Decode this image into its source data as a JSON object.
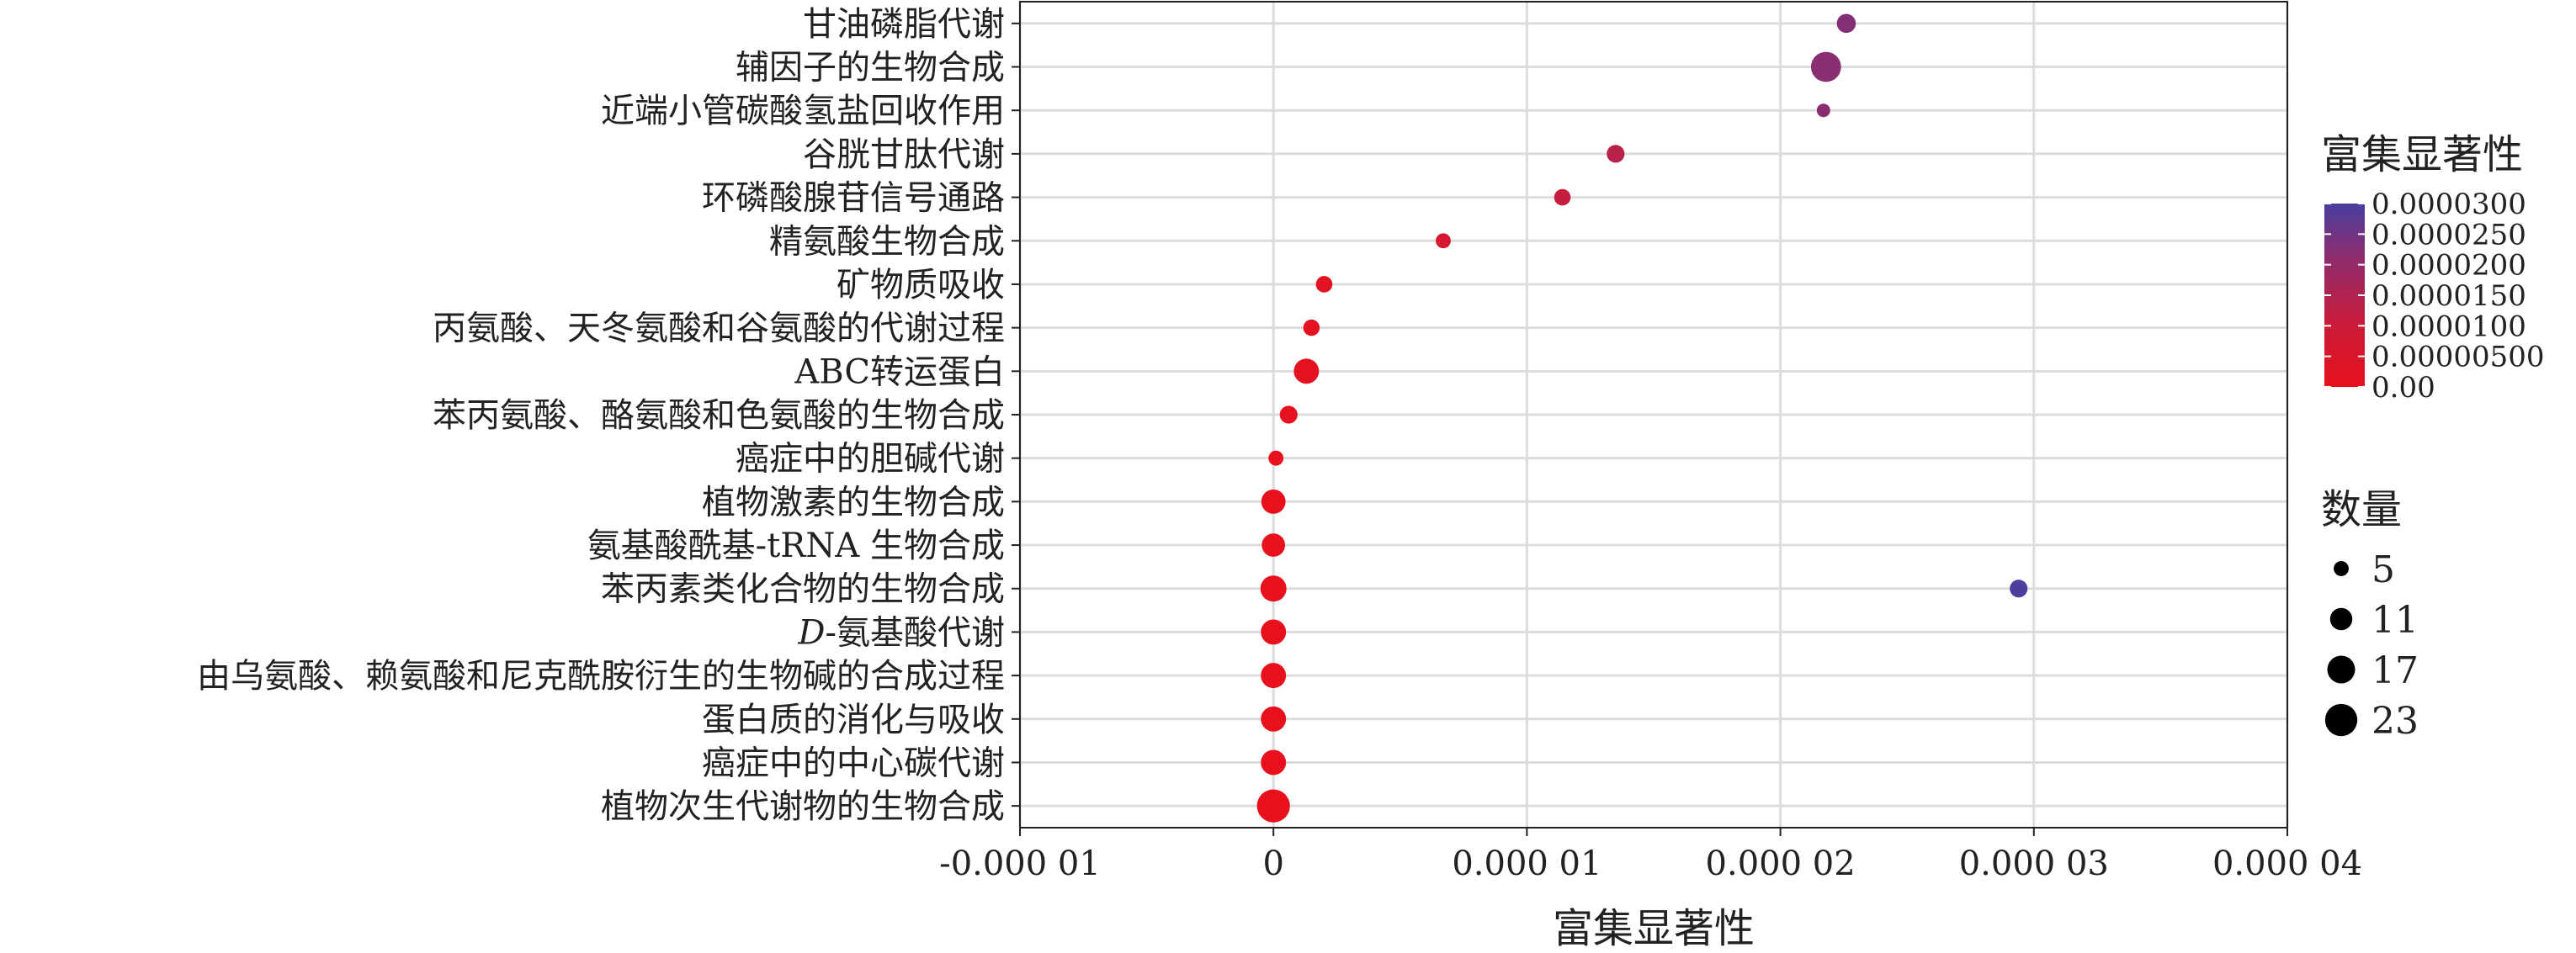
{
  "chart_data": {
    "type": "scatter",
    "xlabel": "富集显著性",
    "x_ticks": [
      "-0.000 01",
      "0",
      "0.000 01",
      "0.000 02",
      "0.000 03",
      "0.000 04"
    ],
    "x_tick_values": [
      -1e-05,
      0,
      1e-05,
      2e-05,
      3e-05,
      4e-05
    ],
    "xlim": [
      -1e-05,
      4e-05
    ],
    "grid": true,
    "categories": [
      "甘油磷脂代谢",
      "辅因子的生物合成",
      "近端小管碳酸氢盐回收作用",
      "谷胱甘肽代谢",
      "环磷酸腺苷信号通路",
      "精氨酸生物合成",
      "矿物质吸收",
      "丙氨酸、天冬氨酸和谷氨酸的代谢过程",
      "ABC转运蛋白",
      "苯丙氨酸、酪氨酸和色氨酸的生物合成",
      "癌症中的胆碱代谢",
      "植物激素的生物合成",
      "氨基酸酰基-tRNA 生物合成",
      "苯丙素类化合物的生物合成",
      "D-氨基酸代谢",
      "由乌氨酸、赖氨酸和尼克酰胺衍生的生物碱的合成过程",
      "蛋白质的消化与吸收",
      "癌症中的中心碳代谢",
      "植物次生代谢物的生物合成"
    ],
    "points": [
      {
        "category": "甘油磷脂代谢",
        "x": 2.26e-05,
        "count": 8,
        "color_value": 2.26e-05
      },
      {
        "category": "辅因子的生物合成",
        "x": 2.18e-05,
        "count": 20,
        "color_value": 2.18e-05
      },
      {
        "category": "近端小管碳酸氢盐回收作用",
        "x": 2.17e-05,
        "count": 4,
        "color_value": 2.17e-05
      },
      {
        "category": "谷胱甘肽代谢",
        "x": 1.35e-05,
        "count": 7,
        "color_value": 1.35e-05
      },
      {
        "category": "环磷酸腺苷信号通路",
        "x": 1.14e-05,
        "count": 6,
        "color_value": 1.14e-05
      },
      {
        "category": "精氨酸生物合成",
        "x": 6.7e-06,
        "count": 5,
        "color_value": 6.7e-06
      },
      {
        "category": "矿物质吸收",
        "x": 2e-06,
        "count": 6,
        "color_value": 2e-06
      },
      {
        "category": "丙氨酸、天冬氨酸和谷氨酸的代谢过程",
        "x": 1.5e-06,
        "count": 6,
        "color_value": 1.5e-06
      },
      {
        "category": "ABC转运蛋白",
        "x": 1.3e-06,
        "count": 14,
        "color_value": 1.3e-06
      },
      {
        "category": "苯丙氨酸、酪氨酸和色氨酸的生物合成",
        "x": 6e-07,
        "count": 7,
        "color_value": 6e-07
      },
      {
        "category": "癌症中的胆碱代谢",
        "x": 1e-07,
        "count": 5,
        "color_value": 1e-07
      },
      {
        "category": "植物激素的生物合成",
        "x": 0.0,
        "count": 13,
        "color_value": 0.0
      },
      {
        "category": "氨基酸酰基-tRNA 生物合成",
        "x": 0.0,
        "count": 12,
        "color_value": 0.0
      },
      {
        "category": "苯丙素类化合物的生物合成",
        "x": 0.0,
        "count": 15,
        "color_value": 0.0
      },
      {
        "category": "苯丙素类化合物的生物合成",
        "x": 2.94e-05,
        "count": 7,
        "color_value": 2.94e-05
      },
      {
        "category": "D-氨基酸代谢",
        "x": 0.0,
        "count": 14,
        "color_value": 0.0
      },
      {
        "category": "由乌氨酸、赖氨酸和尼克酰胺衍生的生物碱的合成过程",
        "x": 0.0,
        "count": 14,
        "color_value": 0.0
      },
      {
        "category": "蛋白质的消化与吸收",
        "x": 0.0,
        "count": 14,
        "color_value": 0.0
      },
      {
        "category": "癌症中的中心碳代谢",
        "x": 0.0,
        "count": 14,
        "color_value": 0.0
      },
      {
        "category": "植物次生代谢物的生物合成",
        "x": 0.0,
        "count": 24,
        "color_value": 0.0
      }
    ],
    "color_legend": {
      "title": "富集显著性",
      "ticks": [
        "0.0000300",
        "0.0000250",
        "0.0000200",
        "0.0000150",
        "0.0000100",
        "0.00000500",
        "0.00"
      ],
      "tick_values": [
        3e-05,
        2.5e-05,
        2e-05,
        1.5e-05,
        1e-05,
        5e-06,
        0
      ],
      "range": [
        0,
        3e-05
      ],
      "low_color": "#e8101c",
      "high_color": "#4a3ea0"
    },
    "size_legend": {
      "title": "数量",
      "values": [
        5,
        11,
        17,
        23
      ],
      "labels": [
        "5",
        "11",
        "17",
        "23"
      ]
    }
  }
}
